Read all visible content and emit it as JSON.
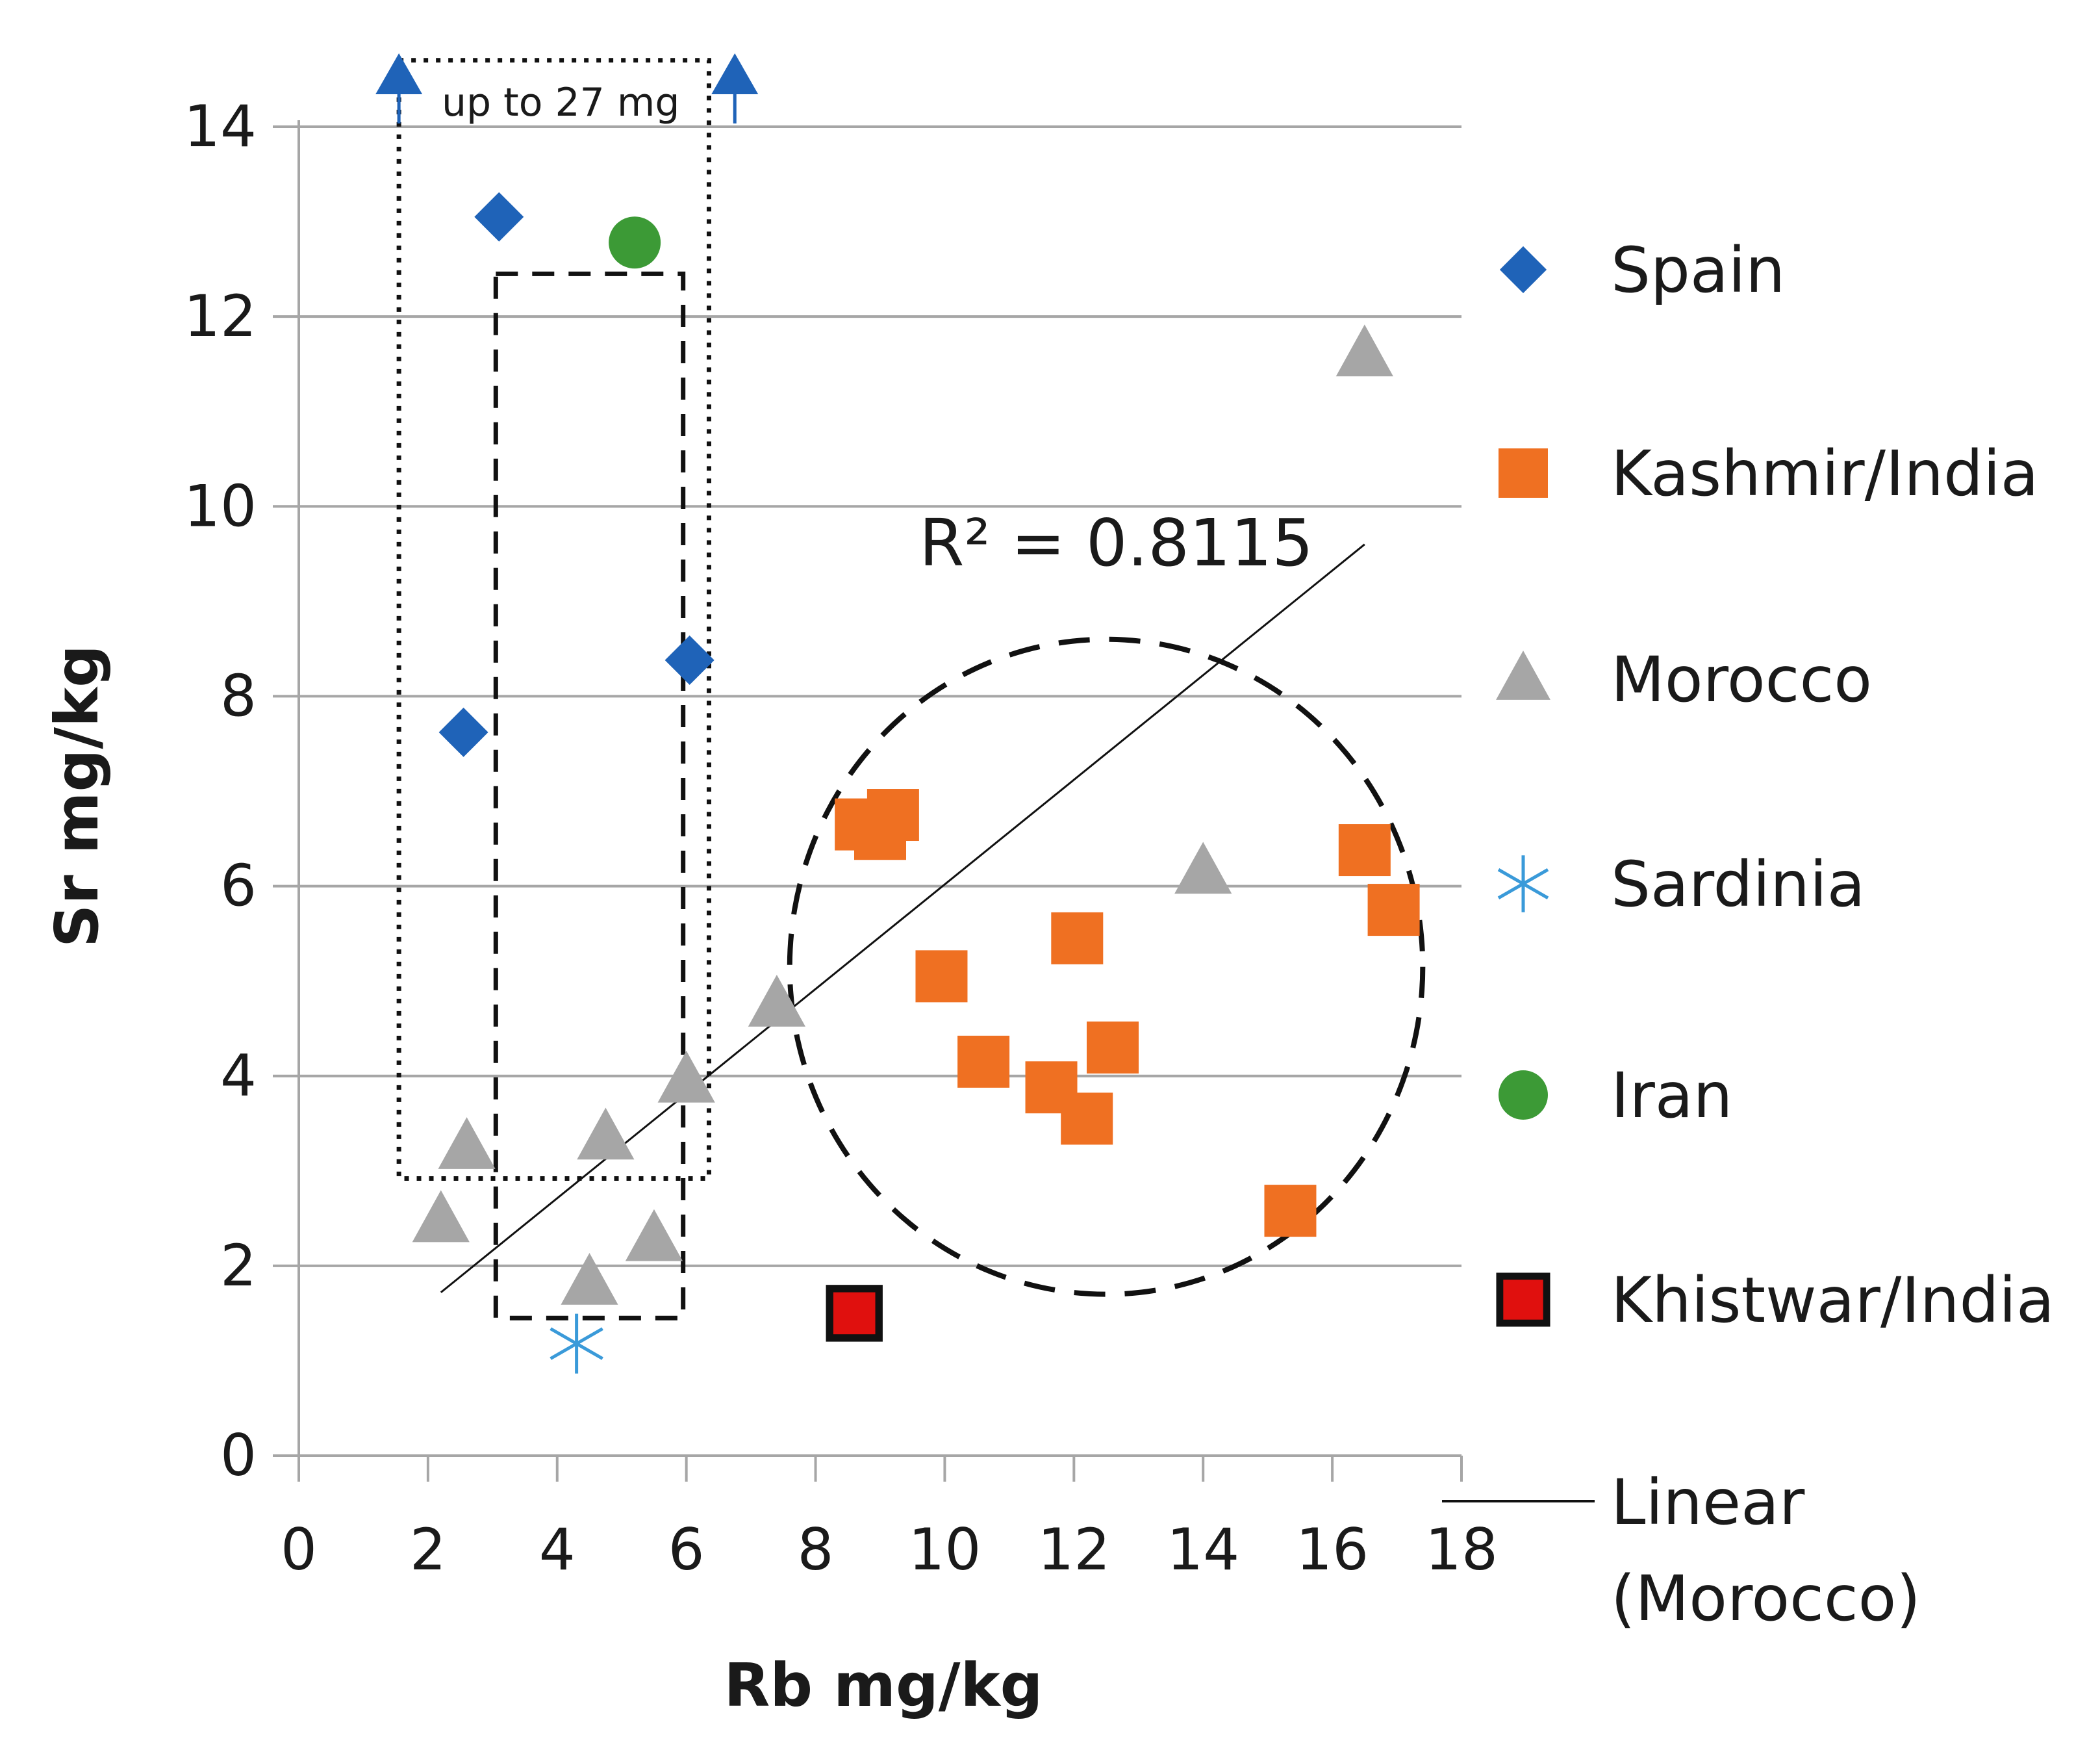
{
  "chart_data": {
    "type": "scatter",
    "title": "",
    "xlabel": "Rb mg/kg",
    "ylabel": "Sr mg/kg",
    "xlim": [
      0,
      18
    ],
    "ylim": [
      0,
      14
    ],
    "xticks": [
      0,
      2,
      4,
      6,
      8,
      10,
      12,
      14,
      16,
      18
    ],
    "yticks": [
      0,
      2,
      4,
      6,
      8,
      10,
      12,
      14
    ],
    "grid": "horizontal",
    "legend_position": "right",
    "series": [
      {
        "name": "Spain",
        "marker": "diamond",
        "color": "#1f63b8",
        "points": [
          [
            3.1,
            13.05
          ],
          [
            2.55,
            7.62
          ],
          [
            6.05,
            8.38
          ]
        ]
      },
      {
        "name": "Kashmir/India",
        "marker": "square",
        "color": "#ef7022",
        "points": [
          [
            8.7,
            6.65
          ],
          [
            9.0,
            6.55
          ],
          [
            9.2,
            6.75
          ],
          [
            9.95,
            5.05
          ],
          [
            10.6,
            4.15
          ],
          [
            12.05,
            5.45
          ],
          [
            11.65,
            3.88
          ],
          [
            12.2,
            3.55
          ],
          [
            12.6,
            4.3
          ],
          [
            16.5,
            6.38
          ],
          [
            16.95,
            5.75
          ],
          [
            15.35,
            2.58
          ]
        ]
      },
      {
        "name": "Morocco",
        "marker": "triangle",
        "color": "#a6a6a6",
        "points": [
          [
            16.5,
            11.6
          ],
          [
            14.0,
            6.15
          ],
          [
            7.4,
            4.75
          ],
          [
            6.0,
            3.95
          ],
          [
            4.75,
            3.35
          ],
          [
            2.6,
            3.25
          ],
          [
            2.2,
            2.48
          ],
          [
            5.5,
            2.28
          ],
          [
            4.5,
            1.82
          ]
        ]
      },
      {
        "name": "Sardinia",
        "marker": "asterisk",
        "color": "#3a9ad9",
        "points": [
          [
            4.3,
            1.18
          ]
        ]
      },
      {
        "name": "Iran",
        "marker": "circle",
        "color": "#3c9a36",
        "points": [
          [
            5.2,
            12.78
          ]
        ]
      },
      {
        "name": "Khistwar/India",
        "marker": "square-outlined",
        "color": "#e0100e",
        "points": [
          [
            8.6,
            1.5
          ]
        ]
      }
    ],
    "trendline": {
      "name": "Linear (Morocco)",
      "label_lines": [
        "Linear",
        "(Morocco)"
      ],
      "from": [
        2.2,
        1.72
      ],
      "to": [
        16.5,
        9.6
      ],
      "r2_text": "R² = 0.8115"
    },
    "annotations": {
      "upto_text": "up to 27 mg",
      "arrow_markers": [
        {
          "x": 1.55,
          "color": "#1f63b8"
        },
        {
          "x": 6.75,
          "color": "#1f63b8"
        }
      ],
      "dotted_box": {
        "x0": 1.55,
        "x1": 6.35,
        "y0": 2.92,
        "y1": 14.7
      },
      "dashed_box": {
        "x0": 3.05,
        "x1": 5.95,
        "y0": 1.45,
        "y1": 12.45
      },
      "dashed_ellipse": {
        "cx": 12.5,
        "cy": 5.15,
        "rx": 4.9,
        "ry": 3.45
      }
    }
  }
}
